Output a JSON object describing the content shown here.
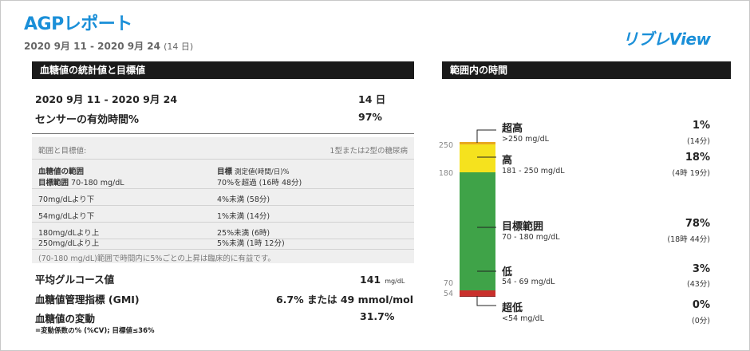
{
  "header": {
    "title": "AGPレポート",
    "date_range": "2020 9月 11 - 2020 9月 24",
    "days": "(14 日)",
    "brand": "リブレView"
  },
  "stats": {
    "section_title": "血糖値の統計値と目標値",
    "period_label": "2020 9月 11 - 2020 9月 24",
    "period_value": "14 日",
    "sensor_label": "センサーの有効時間%",
    "sensor_value": "97%"
  },
  "targets": {
    "header_left": "範囲と目標値:",
    "header_right": "1型または2型の糖尿病",
    "col1_title": "血糖値の範囲",
    "col1_sub_bold": "目標範囲",
    "col1_sub_range": "70-180 mg/dL",
    "col2_title": "目標",
    "col2_title_sub": "測定値(時間/日)%",
    "col2_sub": "70%を超過 (16時 48分)",
    "rows": [
      {
        "range": "70mg/dLより下",
        "target": "4%未満 (58分)"
      },
      {
        "range": "54mg/dLより下",
        "target": "1%未満 (14分)"
      },
      {
        "range": "180mg/dLより上",
        "target": "25%未満 (6時)"
      },
      {
        "range": "250mg/dLより上",
        "target": "5%未満 (1時 12分)"
      }
    ],
    "footnote": "(70-180 mg/dL)範囲で時間内に5%ごとの上昇は臨床的に有益です。"
  },
  "summary": {
    "avg_label": "平均グルコース値",
    "avg_value": "141",
    "avg_unit": "mg/dL",
    "gmi_label": "血糖値管理指標 (GMI)",
    "gmi_value": "6.7% または 49 mmol/mol",
    "var_label": "血糖値の変動",
    "var_value": "31.7%",
    "var_note": "=変動係数の% (%CV); 目標値≤36%"
  },
  "tir": {
    "section_title": "範囲内の時間",
    "axis_ticks": [
      "250",
      "180",
      "70",
      "54"
    ],
    "segments": [
      {
        "name": "超高",
        "range": ">250 mg/dL",
        "percent": 1,
        "percent_label": "1%",
        "time": "(14分)",
        "color": "#e8a820"
      },
      {
        "name": "高",
        "range": "181 - 250 mg/dL",
        "percent": 18,
        "percent_label": "18%",
        "time": "(4時 19分)",
        "color": "#f5e21e"
      },
      {
        "name": "目標範囲",
        "range": "70 - 180 mg/dL",
        "percent": 78,
        "percent_label": "78%",
        "time": "(18時 44分)",
        "color": "#3fa348"
      },
      {
        "name": "低",
        "range": "54 - 69 mg/dL",
        "percent": 3,
        "percent_label": "3%",
        "time": "(43分)",
        "color": "#c9302c"
      },
      {
        "name": "超低",
        "range": "<54 mg/dL",
        "percent": 0,
        "percent_label": "0%",
        "time": "(0分)",
        "color": "#8b1a1a"
      }
    ]
  }
}
